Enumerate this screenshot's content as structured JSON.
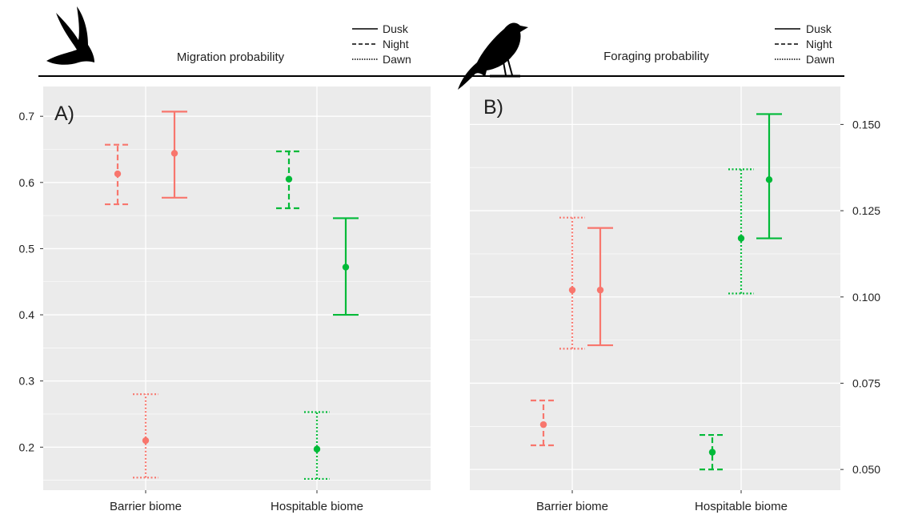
{
  "colors": {
    "barrier": "#F8766D",
    "hospitable": "#00BA38",
    "panel_bg": "#EBEBEB",
    "grid": "#FFFFFF",
    "text": "#222222"
  },
  "icons": [
    "bird-flying-icon",
    "bird-perched-icon"
  ],
  "legend": [
    {
      "label": "Dusk",
      "line": "solid"
    },
    {
      "label": "Night",
      "line": "dashed"
    },
    {
      "label": "Dawn",
      "line": "dotted"
    }
  ],
  "chart_data": [
    {
      "type": "scatter",
      "panel_label": "A)",
      "title": "Migration probability",
      "categories": [
        "Barrier biome",
        "Hospitable biome"
      ],
      "y_axis_side": "left",
      "ylim": [
        0.135,
        0.745
      ],
      "yticks": [
        0.2,
        0.3,
        0.4,
        0.5,
        0.6,
        0.7
      ],
      "ytick_labels": [
        "0.2",
        "0.3",
        "0.4",
        "0.5",
        "0.6",
        "0.7"
      ],
      "grid": true,
      "series": [
        {
          "name": "Dusk",
          "line": "solid",
          "points": [
            {
              "category": "Barrier biome",
              "y": 0.644,
              "low": 0.577,
              "high": 0.707
            },
            {
              "category": "Hospitable biome",
              "y": 0.472,
              "low": 0.4,
              "high": 0.546
            }
          ]
        },
        {
          "name": "Night",
          "line": "dashed",
          "points": [
            {
              "category": "Barrier biome",
              "y": 0.613,
              "low": 0.567,
              "high": 0.657
            },
            {
              "category": "Hospitable biome",
              "y": 0.605,
              "low": 0.561,
              "high": 0.647
            }
          ]
        },
        {
          "name": "Dawn",
          "line": "dotted",
          "points": [
            {
              "category": "Barrier biome",
              "y": 0.21,
              "low": 0.154,
              "high": 0.28
            },
            {
              "category": "Hospitable biome",
              "y": 0.197,
              "low": 0.152,
              "high": 0.253
            }
          ]
        }
      ]
    },
    {
      "type": "scatter",
      "panel_label": "B)",
      "title": "Foraging probability",
      "categories": [
        "Barrier biome",
        "Hospitable biome"
      ],
      "y_axis_side": "right",
      "ylim": [
        0.044,
        0.161
      ],
      "yticks": [
        0.05,
        0.075,
        0.1,
        0.125,
        0.15
      ],
      "ytick_labels": [
        "0.050",
        "0.075",
        "0.100",
        "0.125",
        "0.150"
      ],
      "grid": true,
      "series": [
        {
          "name": "Dusk",
          "line": "solid",
          "points": [
            {
              "category": "Barrier biome",
              "y": 0.102,
              "low": 0.086,
              "high": 0.12
            },
            {
              "category": "Hospitable biome",
              "y": 0.134,
              "low": 0.117,
              "high": 0.153
            }
          ]
        },
        {
          "name": "Night",
          "line": "dashed",
          "points": [
            {
              "category": "Barrier biome",
              "y": 0.063,
              "low": 0.057,
              "high": 0.07
            },
            {
              "category": "Hospitable biome",
              "y": 0.055,
              "low": 0.05,
              "high": 0.06
            }
          ]
        },
        {
          "name": "Dawn",
          "line": "dotted",
          "points": [
            {
              "category": "Barrier biome",
              "y": 0.102,
              "low": 0.085,
              "high": 0.123
            },
            {
              "category": "Hospitable biome",
              "y": 0.117,
              "low": 0.101,
              "high": 0.137
            }
          ]
        }
      ]
    }
  ]
}
